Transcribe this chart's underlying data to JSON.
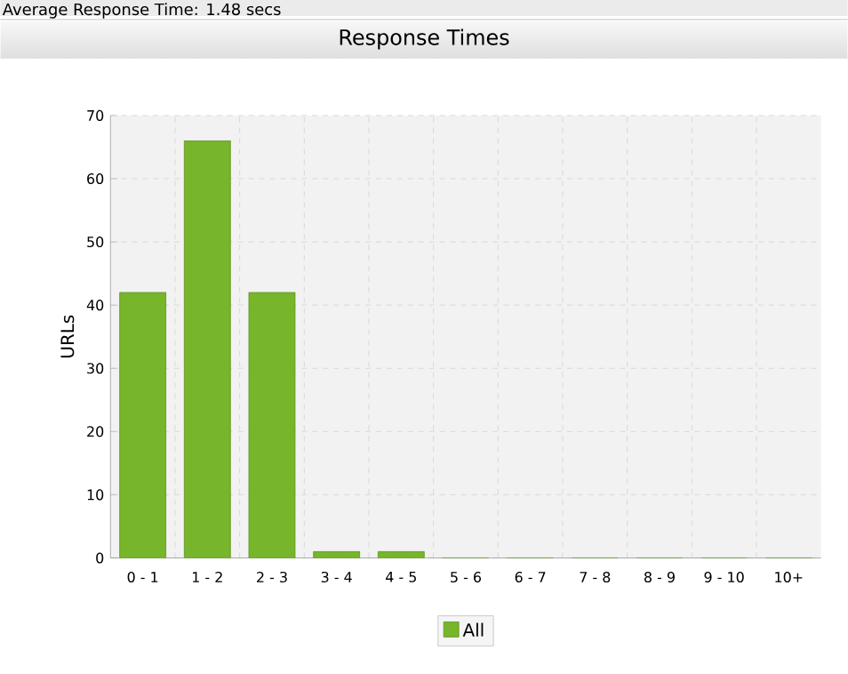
{
  "chart_data": {
    "type": "bar",
    "title": "Response Times",
    "annotations": [
      "Average Response Time: 1.48 secs"
    ],
    "ylabel": "URLs",
    "categories": [
      "0 - 1",
      "1 - 2",
      "2 - 3",
      "3 - 4",
      "4 - 5",
      "5 - 6",
      "6 - 7",
      "7 - 8",
      "8 - 9",
      "9 - 10",
      "10+"
    ],
    "series": [
      {
        "name": "All",
        "color": "#77b52a",
        "values": [
          42,
          66,
          42,
          1,
          1,
          0,
          0,
          0,
          0,
          0,
          0
        ]
      }
    ],
    "ylim": [
      0,
      70
    ],
    "yticks": [
      0,
      10,
      20,
      30,
      40,
      50,
      60,
      70
    ],
    "grid": true,
    "legend": "bottom"
  }
}
